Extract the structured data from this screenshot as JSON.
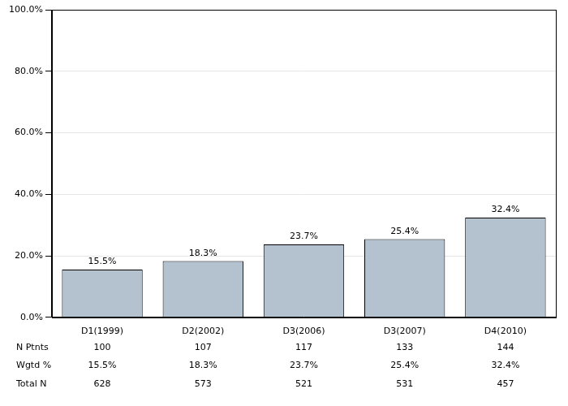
{
  "chart_data": {
    "type": "bar",
    "categories": [
      "D1(1999)",
      "D2(2002)",
      "D3(2006)",
      "D3(2007)",
      "D4(2010)"
    ],
    "values": [
      15.5,
      18.3,
      23.7,
      25.4,
      32.4
    ],
    "value_labels": [
      "15.5%",
      "18.3%",
      "23.7%",
      "25.4%",
      "32.4%"
    ],
    "color": "#b4c2d0",
    "ylim": [
      0,
      100
    ],
    "yticks": [
      {
        "value": 0,
        "label": "0.0%"
      },
      {
        "value": 20,
        "label": "20.0%"
      },
      {
        "value": 40,
        "label": "40.0%"
      },
      {
        "value": 60,
        "label": "60.0%"
      },
      {
        "value": 80,
        "label": "80.0%"
      },
      {
        "value": 100,
        "label": "100.0%"
      }
    ],
    "grid": true,
    "data_labels": true
  },
  "table": {
    "rows": [
      {
        "label": "N Ptnts",
        "values": [
          "100",
          "107",
          "117",
          "133",
          "144"
        ]
      },
      {
        "label": "Wgtd %",
        "values": [
          "15.5%",
          "18.3%",
          "23.7%",
          "25.4%",
          "32.4%"
        ]
      },
      {
        "label": "Total N",
        "values": [
          "628",
          "573",
          "521",
          "531",
          "457"
        ]
      }
    ]
  }
}
